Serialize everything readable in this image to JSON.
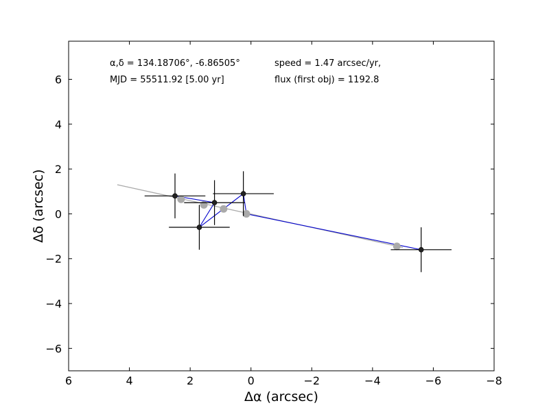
{
  "chart_data": {
    "type": "scatter",
    "xlabel": "Δα (arcsec)",
    "ylabel": "Δδ (arcsec)",
    "xlim": [
      6,
      -8
    ],
    "ylim": [
      -7,
      7.7
    ],
    "x_ticks": [
      6,
      4,
      2,
      0,
      -2,
      -4,
      -6,
      -8
    ],
    "y_ticks": [
      -6,
      -4,
      -2,
      0,
      2,
      4,
      6
    ],
    "x_tick_labels": [
      "6",
      "4",
      "2",
      "0",
      "−2",
      "−4",
      "−6",
      "−8"
    ],
    "y_tick_labels": [
      "−6",
      "−4",
      "−2",
      "0",
      "2",
      "4",
      "6"
    ],
    "grid": false,
    "annotations": {
      "coords": "α,δ = 134.18706°, -6.86505°",
      "mjd": "MJD = 55511.92 [5.00 yr]",
      "speed": "speed = 1.47 arcsec/yr,",
      "flux": "flux (first obj) = 1192.8"
    },
    "colors": {
      "observed": "#222222",
      "error_bar": "#000000",
      "model": "#aaaaaa",
      "model_line": "#aaaaaa",
      "connector": "#0000cc"
    },
    "observed_points": [
      {
        "x": 2.5,
        "y": 0.8,
        "xerr": 1.0,
        "yerr": 1.0
      },
      {
        "x": 1.2,
        "y": 0.5,
        "xerr": 1.0,
        "yerr": 1.0
      },
      {
        "x": 1.7,
        "y": -0.6,
        "xerr": 1.0,
        "yerr": 1.0
      },
      {
        "x": 0.25,
        "y": 0.9,
        "xerr": 1.0,
        "yerr": 1.0
      },
      {
        "x": -5.6,
        "y": -1.6,
        "xerr": 1.0,
        "yerr": 1.0
      }
    ],
    "model_points": [
      {
        "x": 2.3,
        "y": 0.65
      },
      {
        "x": 1.55,
        "y": 0.4
      },
      {
        "x": 0.9,
        "y": 0.22
      },
      {
        "x": 0.15,
        "y": 0.0
      },
      {
        "x": -4.8,
        "y": -1.45
      }
    ],
    "model_line": [
      {
        "x": 4.4,
        "y": 1.3
      },
      {
        "x": -5.0,
        "y": -1.5
      }
    ],
    "connector_path": [
      {
        "x": 2.5,
        "y": 0.8
      },
      {
        "x": 1.2,
        "y": 0.5
      },
      {
        "x": 1.7,
        "y": -0.6
      },
      {
        "x": 0.25,
        "y": 0.9
      },
      {
        "x": 0.15,
        "y": 0.0
      },
      {
        "x": -5.6,
        "y": -1.6
      }
    ]
  }
}
